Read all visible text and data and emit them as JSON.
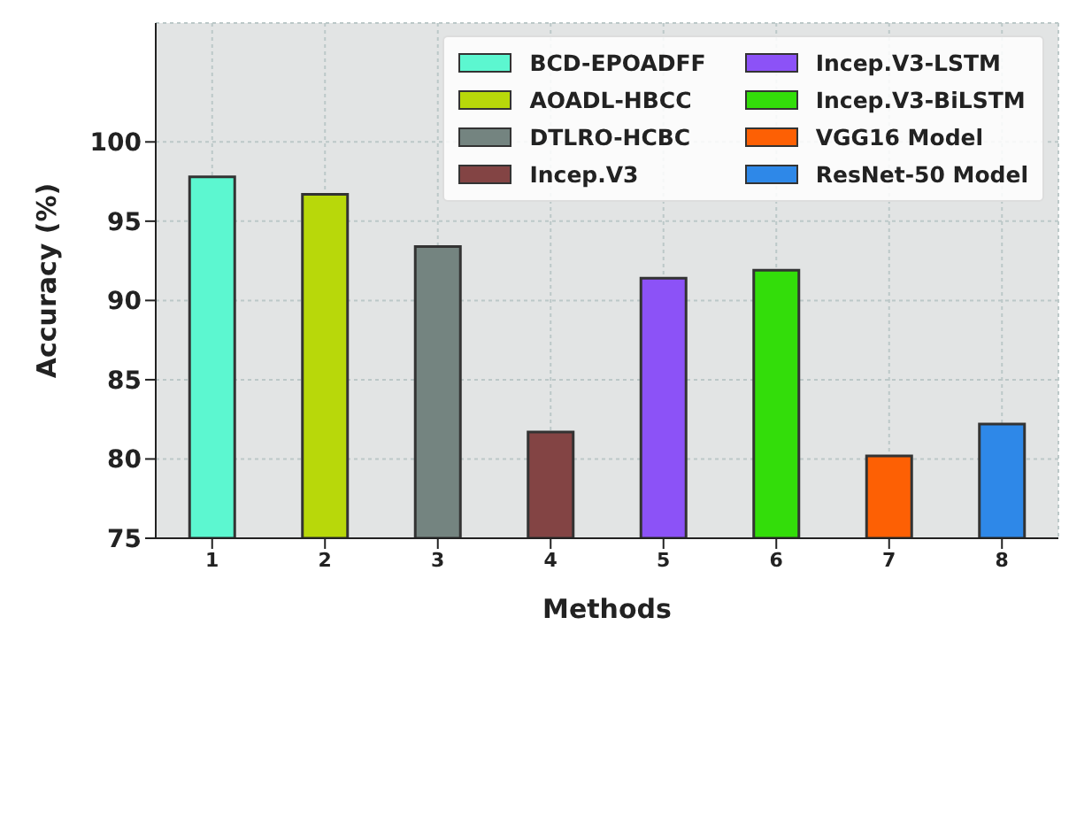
{
  "chart_data": {
    "type": "bar",
    "xlabel": "Methods",
    "ylabel": "Accuracy (%)",
    "categories": [
      "1",
      "2",
      "3",
      "4",
      "5",
      "6",
      "7",
      "8"
    ],
    "series": [
      {
        "name": "BCD-EPOADFF",
        "color": "#5cf7d0",
        "values": [
          97.8,
          null,
          null,
          null,
          null,
          null,
          null,
          null
        ]
      },
      {
        "name": "AOADL-HBCC",
        "color": "#b8d80a",
        "values": [
          null,
          96.7,
          null,
          null,
          null,
          null,
          null,
          null
        ]
      },
      {
        "name": "DTLRO-HCBC",
        "color": "#748480",
        "values": [
          null,
          null,
          93.4,
          null,
          null,
          null,
          null,
          null
        ]
      },
      {
        "name": "Incep.V3",
        "color": "#834444",
        "values": [
          null,
          null,
          null,
          81.7,
          null,
          null,
          null,
          null
        ]
      },
      {
        "name": "Incep.V3-LSTM",
        "color": "#8c52f7",
        "values": [
          null,
          null,
          null,
          null,
          91.4,
          null,
          null,
          null
        ]
      },
      {
        "name": "Incep.V3-BiLSTM",
        "color": "#33dd0a",
        "values": [
          null,
          null,
          null,
          null,
          null,
          91.9,
          null,
          null
        ]
      },
      {
        "name": "VGG16 Model",
        "color": "#fd6004",
        "values": [
          null,
          null,
          null,
          null,
          null,
          null,
          80.2,
          null
        ]
      },
      {
        "name": "ResNet-50 Model",
        "color": "#2e88e8",
        "values": [
          null,
          null,
          null,
          null,
          null,
          null,
          null,
          82.2
        ]
      }
    ],
    "ylim": [
      75,
      107.5
    ],
    "yticks": [
      75,
      80,
      85,
      90,
      95,
      100
    ],
    "grid": true,
    "legend": "top right"
  }
}
